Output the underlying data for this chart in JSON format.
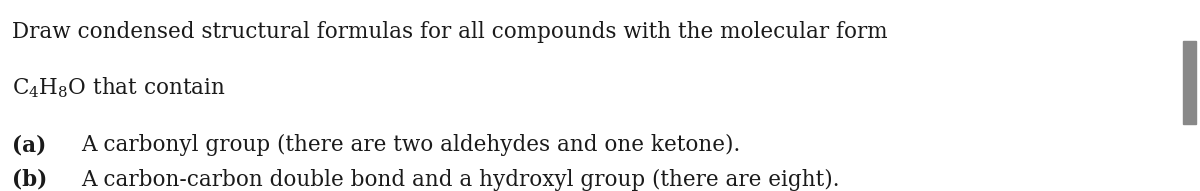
{
  "background_color": "#ffffff",
  "line1": "Draw condensed structural formulas for all compounds with the molecular form",
  "line2_formula": "$\\mathregular{C_4H_8O}$ that contain",
  "line_a_bold": "(a)",
  "line_a_text": "A carbonyl group (there are two aldehydes and one ketone).",
  "line_b_bold": "(b)",
  "line_b_text": "A carbon-carbon double bond and a hydroxyl group (there are eight).",
  "font_size_main": 15.5,
  "text_color": "#1a1a1a",
  "fig_width": 12.0,
  "fig_height": 1.91,
  "scrollbar_color": "#888888"
}
